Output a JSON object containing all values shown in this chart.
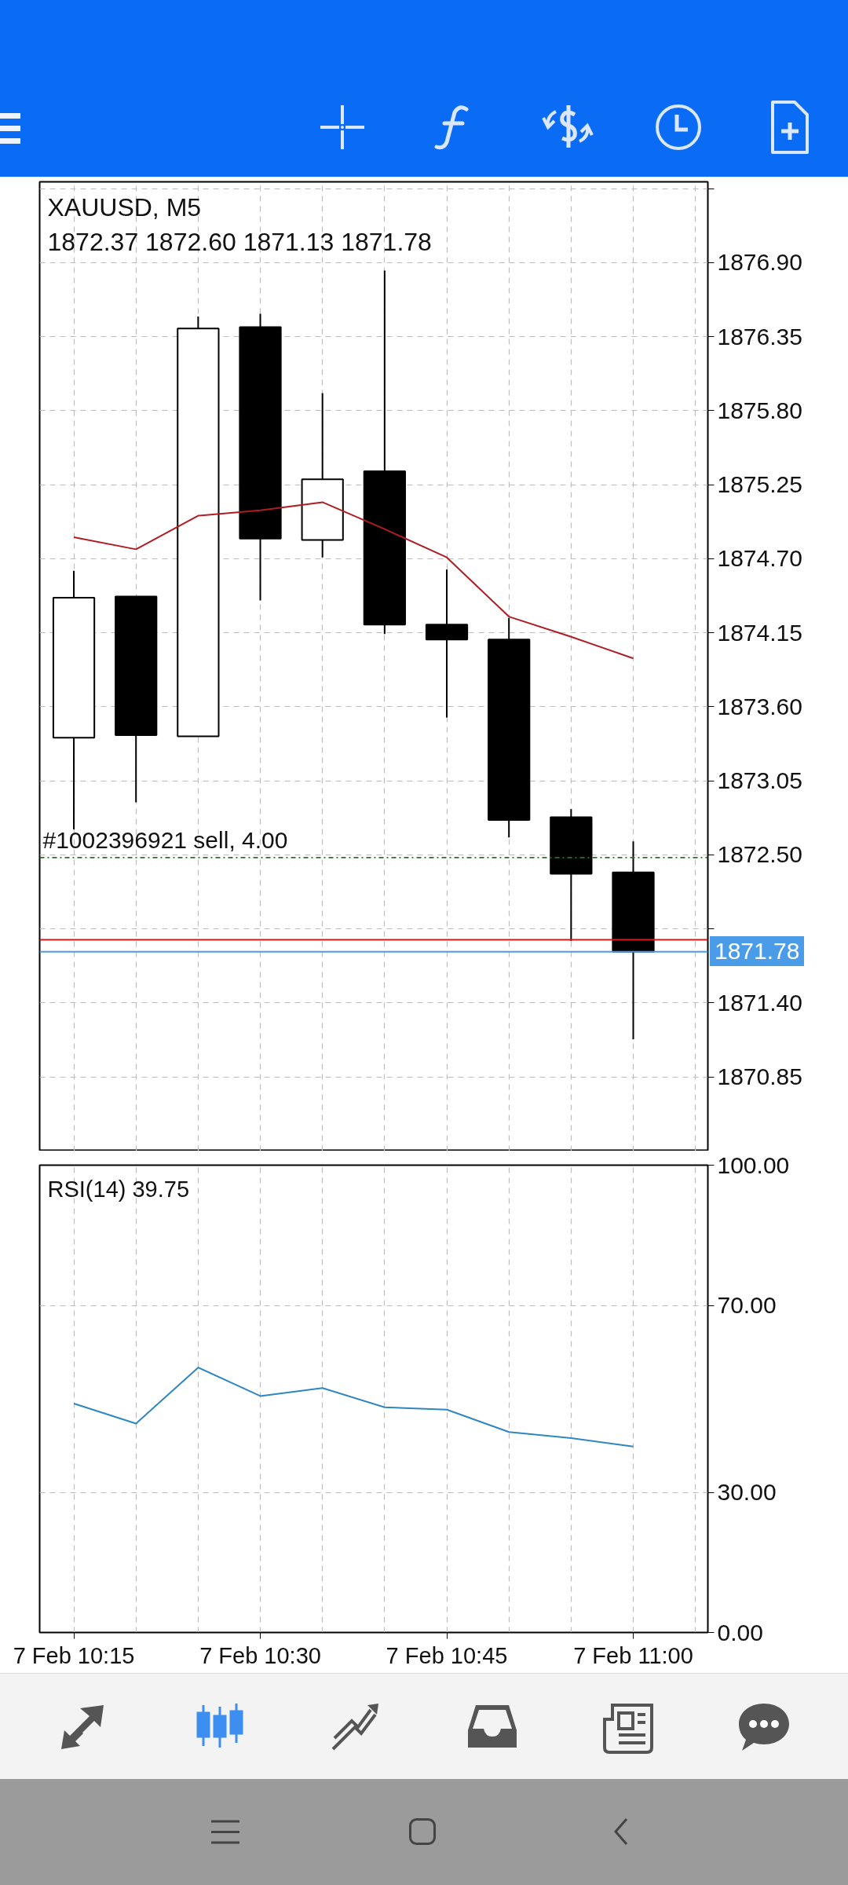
{
  "chart_data": [
    {
      "type": "candlestick",
      "title": "XAUUSD, M5",
      "subtitle": "1872.37 1872.60 1871.13 1871.78",
      "categories": [
        null,
        null,
        null,
        null,
        null,
        null,
        null,
        null,
        null,
        null
      ],
      "ohlc": [
        [
          1873.37,
          1874.61,
          1872.69,
          1874.41
        ],
        [
          1874.42,
          1874.42,
          1872.89,
          1873.39
        ],
        [
          1873.38,
          1876.5,
          1873.38,
          1876.41
        ],
        [
          1876.42,
          1876.52,
          1874.39,
          1874.85
        ],
        [
          1874.84,
          1875.93,
          1874.71,
          1875.29
        ],
        [
          1875.35,
          1876.84,
          1874.14,
          1874.21
        ],
        [
          1874.21,
          1874.62,
          1873.52,
          1874.1
        ],
        [
          1874.1,
          1874.26,
          1872.63,
          1872.76
        ],
        [
          1872.78,
          1872.84,
          1871.86,
          1872.36
        ],
        [
          1872.37,
          1872.6,
          1871.13,
          1871.78
        ]
      ],
      "colors": [
        "#ffffff",
        "#000000",
        "#ffffff",
        "#000000",
        "#ffffff",
        "#000000",
        "#000000",
        "#000000",
        "#000000",
        "#000000"
      ],
      "series": [
        {
          "type": "line",
          "color": "#b01c22",
          "values": [
            1874.86,
            1874.77,
            1875.02,
            1875.06,
            1875.12,
            1874.92,
            1874.71,
            1874.27,
            1874.12,
            1873.96
          ]
        }
      ],
      "ylim": [
        1870.3,
        1877.5
      ],
      "yticks": [
        {
          "value": 1877.45,
          "label": null
        },
        {
          "value": 1876.9,
          "label": "1876.90"
        },
        1876.35,
        {
          "value": 1875.8,
          "label": "1875.80"
        },
        1875.25,
        {
          "value": 1874.7,
          "label": "1874.70"
        },
        1874.15,
        {
          "value": 1873.6,
          "label": "1873.60"
        },
        1873.05,
        {
          "value": 1872.5,
          "label": "1872.50"
        },
        {
          "value": 1871.95,
          "label": null
        },
        {
          "value": 1871.4,
          "label": "1871.40"
        },
        1870.85
      ],
      "tick_labels": "y",
      "grid": true,
      "ref_lines": [
        {
          "axis": "y",
          "value": 1872.48,
          "label": "#1002396921 sell, 4.00",
          "color": "#1f7a1f",
          "line_style": "dashed"
        },
        {
          "axis": "y",
          "value": 1871.87,
          "color": "#d71920",
          "line_style": "solid"
        },
        {
          "axis": "y",
          "value": 1871.78,
          "label": "1871.78",
          "color": "#4a9be8",
          "line_style": "solid"
        }
      ]
    },
    {
      "type": "line",
      "title": "RSI(14) 39.75",
      "categories": [
        "7 Feb 10:15",
        null,
        null,
        "7 Feb 10:30",
        null,
        null,
        "7 Feb 10:45",
        null,
        null,
        "7 Feb 11:00"
      ],
      "series": [
        {
          "color": "#2f86c4",
          "values": [
            49.0,
            44.7,
            56.7,
            50.6,
            52.3,
            48.2,
            47.7,
            42.9,
            41.6,
            39.8
          ]
        }
      ],
      "ylim": [
        0,
        100
      ],
      "yticks": [
        {
          "value": 100,
          "label": "100.00"
        },
        {
          "value": 70,
          "label": "70.00"
        },
        {
          "value": 30,
          "label": "30.00"
        },
        {
          "value": 0,
          "label": "0.00"
        }
      ],
      "grid": true
    }
  ]
}
